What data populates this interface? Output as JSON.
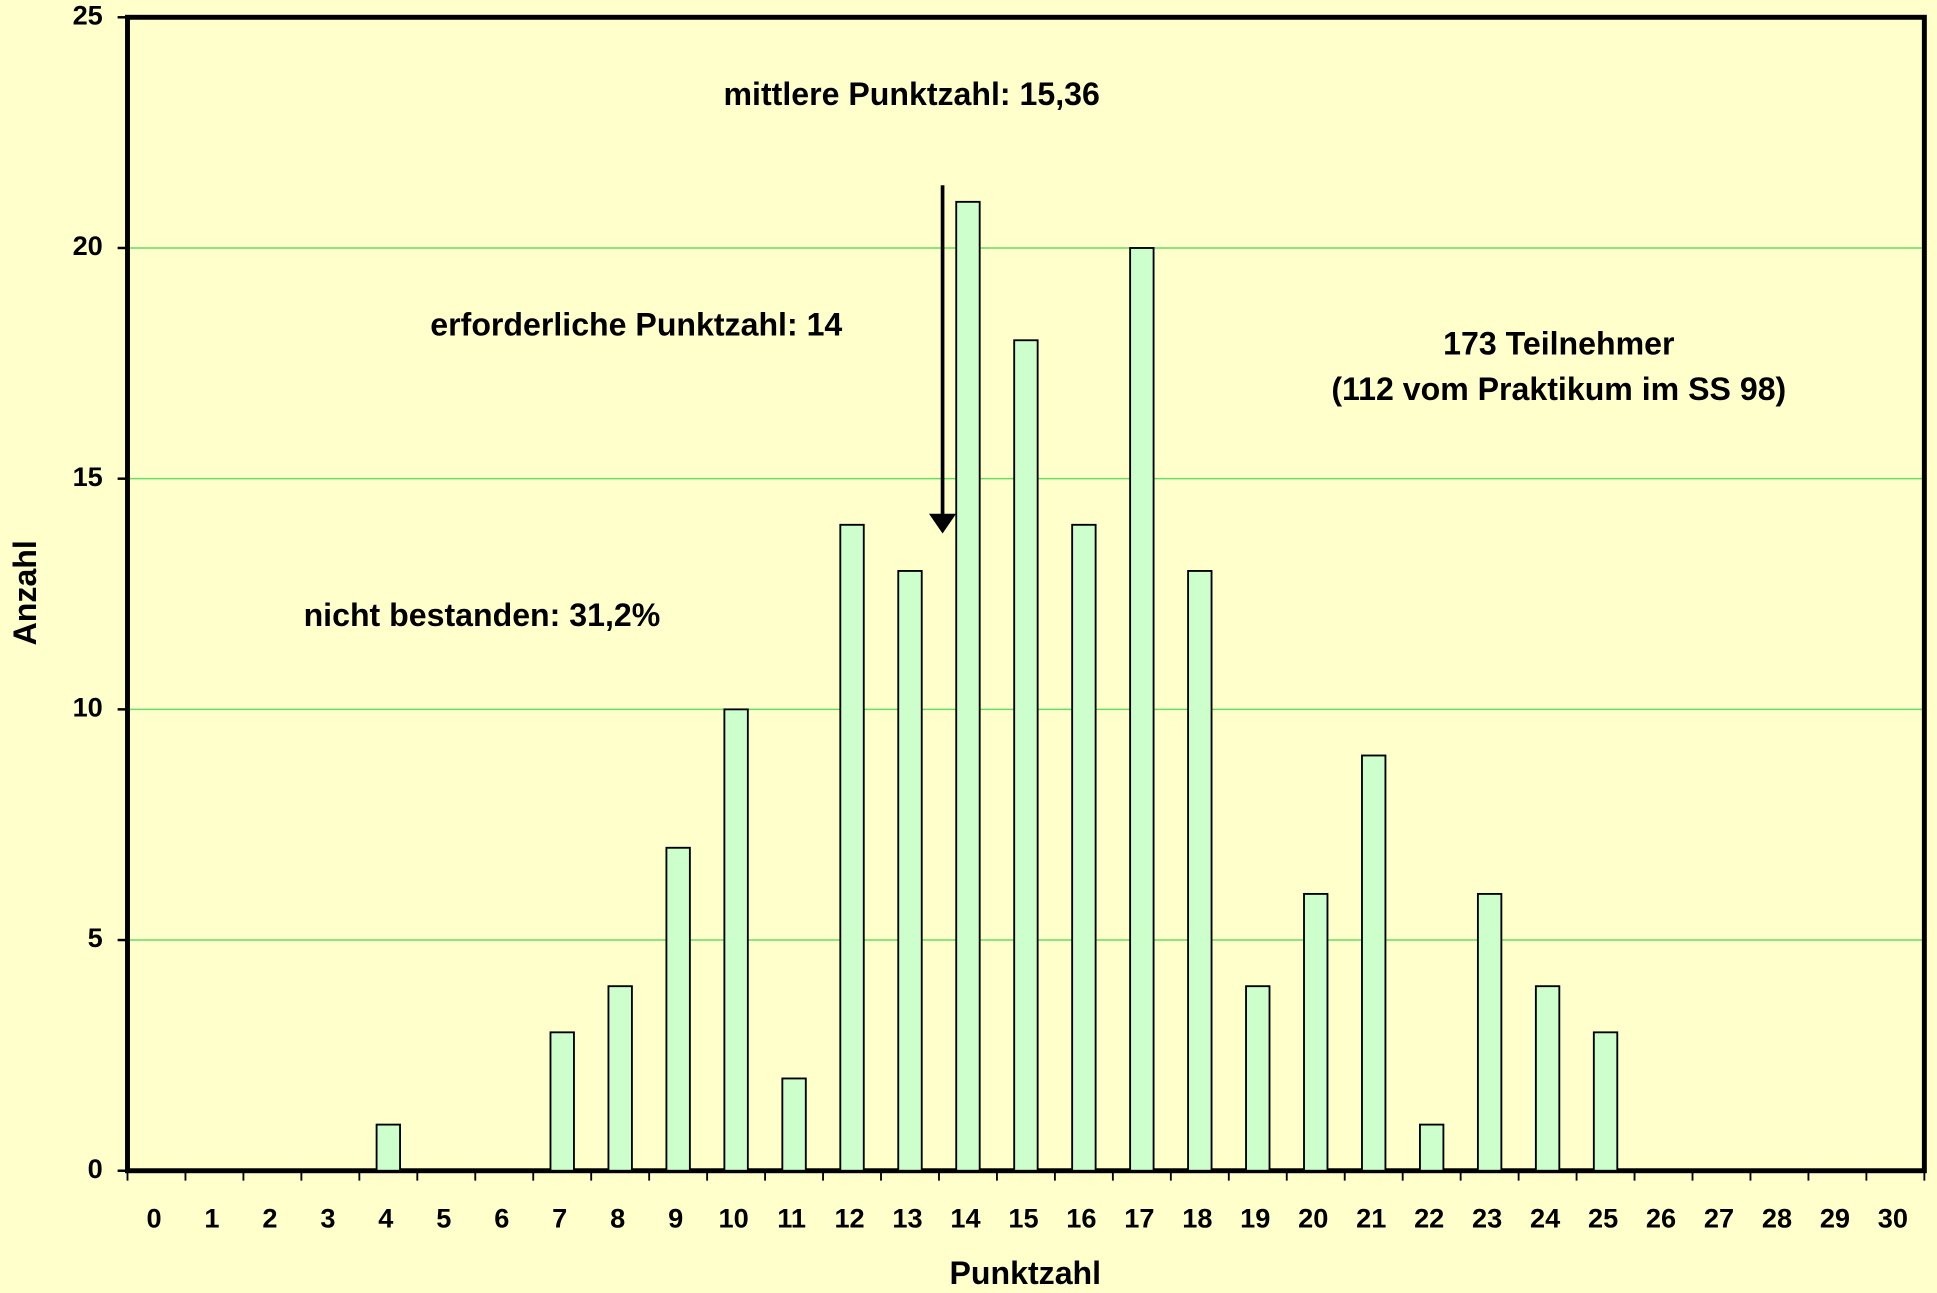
{
  "chart_data": {
    "type": "bar",
    "xlabel": "Punktzahl",
    "ylabel": "Anzahl",
    "annotations": [
      "mittlere Punktzahl: 15,36",
      "erforderliche Punktzahl: 14",
      "173 Teilnehmer",
      "(112 vom Praktikum im SS 98)",
      "nicht bestanden: 31,2%"
    ],
    "categories": [
      "0",
      "1",
      "2",
      "3",
      "4",
      "5",
      "6",
      "7",
      "8",
      "9",
      "10",
      "11",
      "12",
      "13",
      "14",
      "15",
      "16",
      "17",
      "18",
      "19",
      "20",
      "21",
      "22",
      "23",
      "24",
      "25",
      "26",
      "27",
      "28",
      "29",
      "30"
    ],
    "values": [
      0,
      0,
      0,
      0,
      1,
      0,
      0,
      3,
      4,
      7,
      10,
      2,
      14,
      13,
      21,
      18,
      14,
      20,
      13,
      4,
      6,
      9,
      1,
      6,
      4,
      3,
      0,
      0,
      0,
      0,
      0
    ],
    "color": "#ccffcc",
    "grid_color": "#66dd66",
    "ylim": [
      0,
      25
    ],
    "yticks": [
      0,
      5,
      10,
      15,
      20,
      25
    ],
    "grid": true
  }
}
